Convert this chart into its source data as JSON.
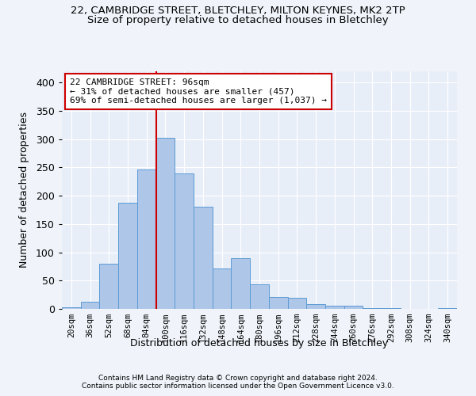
{
  "title1": "22, CAMBRIDGE STREET, BLETCHLEY, MILTON KEYNES, MK2 2TP",
  "title2": "Size of property relative to detached houses in Bletchley",
  "xlabel": "Distribution of detached houses by size in Bletchley",
  "ylabel": "Number of detached properties",
  "footer1": "Contains HM Land Registry data © Crown copyright and database right 2024.",
  "footer2": "Contains public sector information licensed under the Open Government Licence v3.0.",
  "bar_labels": [
    "20sqm",
    "36sqm",
    "52sqm",
    "68sqm",
    "84sqm",
    "100sqm",
    "116sqm",
    "132sqm",
    "148sqm",
    "164sqm",
    "180sqm",
    "196sqm",
    "212sqm",
    "228sqm",
    "244sqm",
    "260sqm",
    "276sqm",
    "292sqm",
    "308sqm",
    "324sqm",
    "340sqm"
  ],
  "bar_values": [
    3,
    12,
    80,
    187,
    246,
    302,
    240,
    180,
    72,
    89,
    44,
    21,
    20,
    9,
    6,
    5,
    1,
    1,
    0,
    0,
    1
  ],
  "bar_color": "#aec6e8",
  "bar_edgecolor": "#5b9bd5",
  "vline_color": "#cc0000",
  "ylim": [
    0,
    420
  ],
  "yticks": [
    0,
    50,
    100,
    150,
    200,
    250,
    300,
    350,
    400
  ],
  "annotation_line1": "22 CAMBRIDGE STREET: 96sqm",
  "annotation_line2": "← 31% of detached houses are smaller (457)",
  "annotation_line3": "69% of semi-detached houses are larger (1,037) →",
  "background_color": "#f0f4fa",
  "plot_bg_color": "#e8eef8",
  "grid_color": "#ffffff",
  "title1_fontsize": 9.5,
  "title2_fontsize": 9.5,
  "bar_width": 1.0,
  "vline_bar_index": 4.5
}
